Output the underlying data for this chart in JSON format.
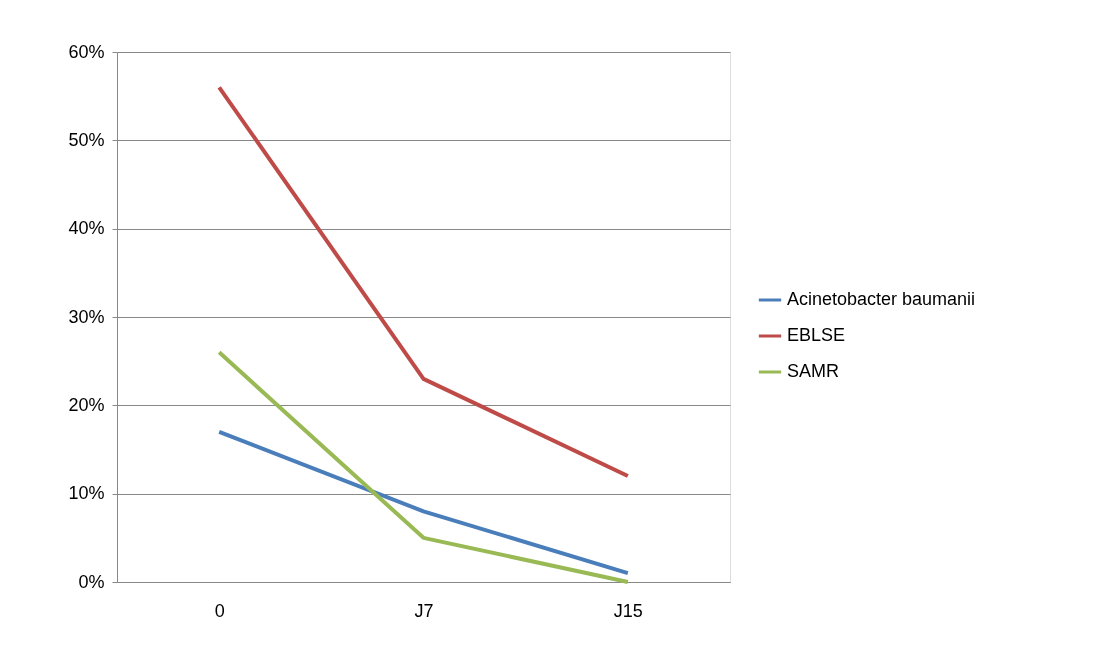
{
  "chart_data": {
    "type": "line",
    "categories": [
      "0",
      "J7",
      "J15"
    ],
    "series": [
      {
        "name": "Acinetobacter baumanii",
        "color": "#4a7ebb",
        "values": [
          17,
          8,
          1
        ]
      },
      {
        "name": "EBLSE",
        "color": "#be4b48",
        "values": [
          56,
          23,
          12
        ]
      },
      {
        "name": "SAMR",
        "color": "#98b954",
        "values": [
          26,
          5,
          0
        ]
      }
    ],
    "ylim": [
      0,
      60
    ],
    "yticks": [
      {
        "value": 0,
        "label": "0%"
      },
      {
        "value": 10,
        "label": "10%"
      },
      {
        "value": 20,
        "label": "20%"
      },
      {
        "value": 30,
        "label": "30%"
      },
      {
        "value": 40,
        "label": "40%"
      },
      {
        "value": 50,
        "label": "50%"
      },
      {
        "value": 60,
        "label": "60%"
      }
    ],
    "grid": "y",
    "legend": "right",
    "marker": "none",
    "line_style": "solid"
  }
}
